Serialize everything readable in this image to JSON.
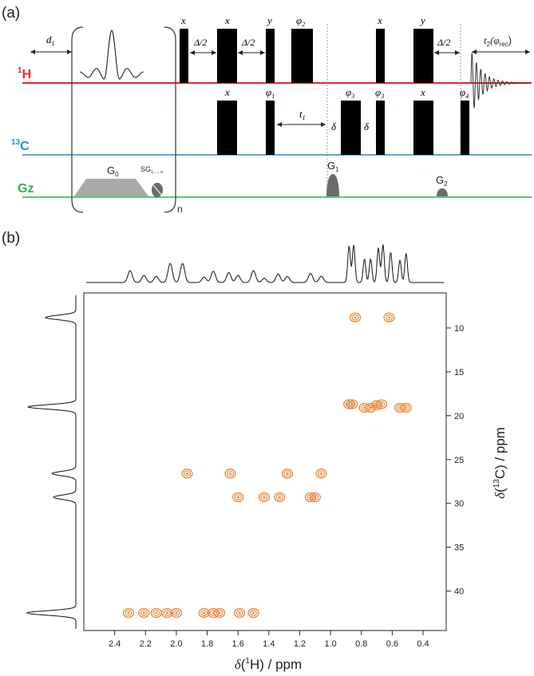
{
  "panel_a": {
    "label": "(a)",
    "channels": {
      "h1": {
        "sup": "1",
        "name": "H",
        "color": "#e8272b"
      },
      "c13": {
        "sup": "13",
        "name": "C",
        "color": "#2a8cc4"
      },
      "gz": {
        "name": "Gz",
        "color": "#2db04b"
      }
    },
    "d1": "d",
    "d1_sub": "1",
    "loop_n": "n",
    "g0": "G",
    "g0_sub": "0",
    "sg": "SG",
    "sg_sub": "1,..., n",
    "g1": "G",
    "g1_sub": "1",
    "g2": "G",
    "g2_sub": "2",
    "delta_half": "Δ/2",
    "t1": "t",
    "t1_sub": "1",
    "delta": "δ",
    "t2_main": "t",
    "t2_sub": "2",
    "t2_phi": "(φ",
    "t2_rec": "rec",
    "t2_close": ")",
    "h_phases": [
      "x",
      "x",
      "y",
      "φ",
      "x",
      "y"
    ],
    "h_phase2_sub": "2",
    "c_phases": [
      "x",
      "φ",
      "φ",
      "φ",
      "x",
      "φ"
    ],
    "c_phase_subs": [
      "",
      "1",
      "3",
      "3",
      "",
      "4"
    ]
  },
  "panel_b": {
    "label": "(b)",
    "x_axis": {
      "prefix": "δ",
      "open": "(",
      "sup": "1",
      "nucleus": "H) / ppm"
    },
    "y_axis": {
      "prefix": "δ",
      "open": "(",
      "sup": "13",
      "nucleus": "C) / ppm"
    },
    "contour_color": "#e8863a"
  },
  "chart_data": {
    "type": "heatmap",
    "subtype": "2D 1H-13C HSQC-type contour spectrum",
    "xlabel": "δ(1H) / ppm",
    "ylabel": "δ(13C) / ppm",
    "x_ticks": [
      2.4,
      2.2,
      2.0,
      1.8,
      1.6,
      1.4,
      1.2,
      1.0,
      0.8,
      0.6,
      0.4
    ],
    "y_ticks": [
      10,
      15,
      20,
      25,
      30,
      35,
      40
    ],
    "xlim": [
      2.6,
      0.25
    ],
    "ylim": [
      6.0,
      44.5
    ],
    "peaks": [
      {
        "h": 0.84,
        "c": 8.8
      },
      {
        "h": 0.62,
        "c": 8.8
      },
      {
        "h": 0.88,
        "c": 18.7
      },
      {
        "h": 0.86,
        "c": 18.7
      },
      {
        "h": 0.78,
        "c": 19.1
      },
      {
        "h": 0.74,
        "c": 19.1
      },
      {
        "h": 0.7,
        "c": 18.8
      },
      {
        "h": 0.67,
        "c": 18.7
      },
      {
        "h": 0.55,
        "c": 19.1
      },
      {
        "h": 0.51,
        "c": 19.1
      },
      {
        "h": 1.93,
        "c": 26.6
      },
      {
        "h": 1.65,
        "c": 26.6
      },
      {
        "h": 1.28,
        "c": 26.6
      },
      {
        "h": 1.06,
        "c": 26.6
      },
      {
        "h": 1.6,
        "c": 29.3
      },
      {
        "h": 1.43,
        "c": 29.3
      },
      {
        "h": 1.33,
        "c": 29.3
      },
      {
        "h": 1.13,
        "c": 29.3
      },
      {
        "h": 1.1,
        "c": 29.3
      },
      {
        "h": 2.31,
        "c": 42.5
      },
      {
        "h": 2.21,
        "c": 42.5
      },
      {
        "h": 2.13,
        "c": 42.5
      },
      {
        "h": 2.06,
        "c": 42.5
      },
      {
        "h": 2.0,
        "c": 42.5
      },
      {
        "h": 1.82,
        "c": 42.5
      },
      {
        "h": 1.76,
        "c": 42.5
      },
      {
        "h": 1.72,
        "c": 42.5
      },
      {
        "h": 1.59,
        "c": 42.5
      },
      {
        "h": 1.5,
        "c": 42.5
      }
    ],
    "projection_1h_peaks": [
      2.3,
      2.21,
      2.13,
      2.04,
      1.96,
      1.82,
      1.76,
      1.66,
      1.6,
      1.5,
      1.43,
      1.34,
      1.28,
      1.13,
      1.06,
      0.88,
      0.85,
      0.78,
      0.74,
      0.69,
      0.66,
      0.61,
      0.55,
      0.51
    ],
    "projection_13c_peaks": [
      8.8,
      19.0,
      26.6,
      29.3,
      42.5
    ]
  }
}
